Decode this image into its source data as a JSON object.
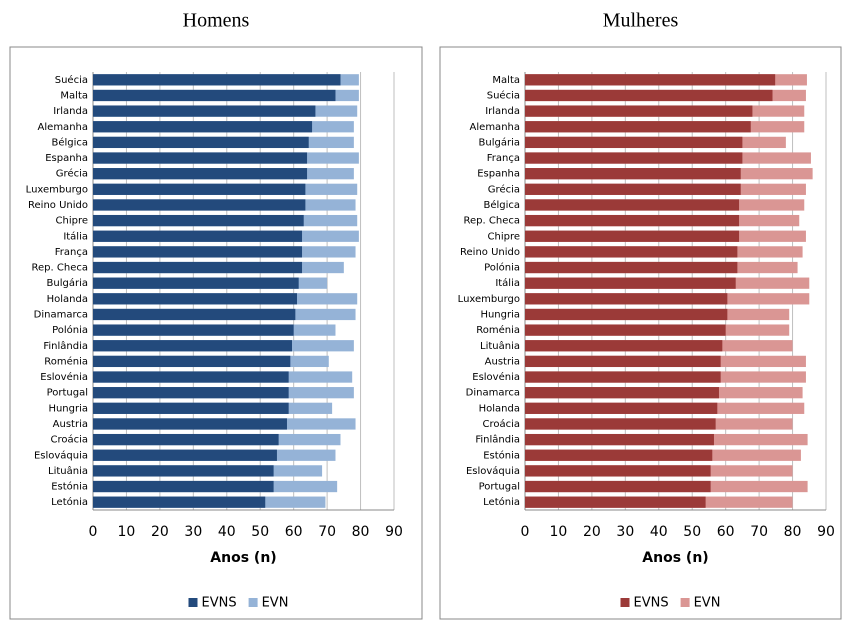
{
  "chart_data": [
    {
      "type": "bar",
      "orientation": "horizontal",
      "bar_mode": "overlap",
      "title": "Homens",
      "x_label": "Anos (n)",
      "categories": [
        "Suécia",
        "Malta",
        "Irlanda",
        "Alemanha",
        "Bélgica",
        "Espanha",
        "Grécia",
        "Luxemburgo",
        "Reino Unido",
        "Chipre",
        "Itália",
        "França",
        "Rep. Checa",
        "Bulgária",
        "Holanda",
        "Dinamarca",
        "Polónia",
        "Finlândia",
        "Roménia",
        "Eslovénia",
        "Portugal",
        "Hungria",
        "Austria",
        "Croácia",
        "Eslováquia",
        "Lituânia",
        "Estónia",
        "Letónia"
      ],
      "series": [
        {
          "name": "EVNS",
          "color": "#234a7c",
          "values": [
            74,
            72.5,
            66.5,
            65.5,
            64.5,
            64,
            64,
            63.5,
            63.5,
            63,
            62.5,
            62.5,
            62.5,
            61.5,
            61,
            60.5,
            60,
            59.5,
            59,
            58.5,
            58.5,
            58.5,
            58,
            55.5,
            55,
            54,
            54,
            51.5
          ]
        },
        {
          "name": "EVN",
          "color": "#95b3d7",
          "values": [
            79.5,
            79.5,
            79,
            78,
            78,
            79.5,
            78,
            79,
            78.5,
            79,
            79.5,
            78.5,
            75,
            70,
            79,
            78.5,
            72.5,
            78,
            70.5,
            77.5,
            78,
            71.5,
            78.5,
            74,
            72.5,
            68.5,
            73,
            69.5
          ]
        }
      ],
      "xlim": [
        0,
        90
      ],
      "xticks": [
        0,
        10,
        20,
        30,
        40,
        50,
        60,
        70,
        80,
        90
      ],
      "grid": true,
      "legend": "bottom"
    },
    {
      "type": "bar",
      "orientation": "horizontal",
      "bar_mode": "overlap",
      "title": "Mulheres",
      "x_label": "Anos (n)",
      "categories": [
        "Malta",
        "Suécia",
        "Irlanda",
        "Alemanha",
        "Bulgária",
        "França",
        "Espanha",
        "Grécia",
        "Bélgica",
        "Rep. Checa",
        "Chipre",
        "Reino Unido",
        "Polónia",
        "Itália",
        "Luxemburgo",
        "Hungria",
        "Roménia",
        "Lituânia",
        "Austria",
        "Eslovénia",
        "Dinamarca",
        "Holanda",
        "Croácia",
        "Finlândia",
        "Estónia",
        "Eslováquia",
        "Portugal",
        "Letónia"
      ],
      "series": [
        {
          "name": "EVNS",
          "color": "#9b3a38",
          "values": [
            74.8,
            74,
            68,
            67.5,
            65,
            65,
            64.5,
            64.5,
            64,
            64,
            64,
            63.5,
            63.5,
            63,
            60.5,
            60.5,
            60,
            59,
            58.5,
            58.5,
            58,
            57.5,
            57,
            56.5,
            56,
            55.5,
            55.5,
            54
          ]
        },
        {
          "name": "EVN",
          "color": "#da9694",
          "values": [
            84.3,
            84,
            83.5,
            83.5,
            78,
            85.5,
            86,
            84,
            83.5,
            82,
            84,
            83,
            81.5,
            85,
            85,
            79,
            79,
            80,
            84,
            84,
            83,
            83.5,
            80,
            84.5,
            82.5,
            80,
            84.5,
            80
          ]
        }
      ],
      "xlim": [
        0,
        90
      ],
      "xticks": [
        0,
        10,
        20,
        30,
        40,
        50,
        60,
        70,
        80,
        90
      ],
      "grid": true,
      "legend": "bottom"
    }
  ]
}
